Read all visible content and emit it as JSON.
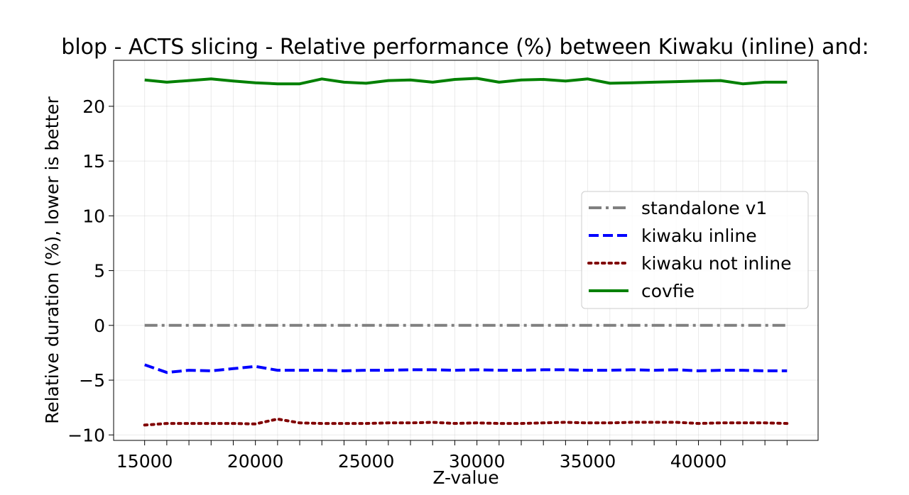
{
  "chart_data": {
    "type": "line",
    "title": "blop - ACTS slicing - Relative performance (%) between Kiwaku (inline) and:",
    "xlabel": "Z-value",
    "ylabel": "Relative duration (%), lower is better",
    "xlim": [
      13600,
      45400
    ],
    "ylim": [
      -10.5,
      24.2
    ],
    "xticks": [
      15000,
      20000,
      25000,
      30000,
      35000,
      40000
    ],
    "yticks": [
      -10,
      -5,
      0,
      5,
      10,
      15,
      20
    ],
    "ytick_labels": [
      "−10",
      "−5",
      "0",
      "5",
      "10",
      "15",
      "20"
    ],
    "grid": true,
    "legend_position": "center-right",
    "x": [
      15000,
      16000,
      17000,
      18000,
      19000,
      20000,
      21000,
      22000,
      23000,
      24000,
      25000,
      26000,
      27000,
      28000,
      29000,
      30000,
      31000,
      32000,
      33000,
      34000,
      35000,
      36000,
      37000,
      38000,
      39000,
      40000,
      41000,
      42000,
      43000,
      44000
    ],
    "series": [
      {
        "name": "standalone v1",
        "color": "#808080",
        "dash": "dashdot",
        "values": [
          0,
          0,
          0,
          0,
          0,
          0,
          0,
          0,
          0,
          0,
          0,
          0,
          0,
          0,
          0,
          0,
          0,
          0,
          0,
          0,
          0,
          0,
          0,
          0,
          0,
          0,
          0,
          0,
          0,
          0
        ]
      },
      {
        "name": "kiwaku inline",
        "color": "#0000ff",
        "dash": "dashed",
        "values": [
          -3.6,
          -4.3,
          -4.1,
          -4.15,
          -3.95,
          -3.75,
          -4.1,
          -4.1,
          -4.1,
          -4.15,
          -4.1,
          -4.1,
          -4.05,
          -4.05,
          -4.1,
          -4.05,
          -4.1,
          -4.1,
          -4.05,
          -4.05,
          -4.1,
          -4.1,
          -4.05,
          -4.1,
          -4.05,
          -4.15,
          -4.1,
          -4.1,
          -4.15,
          -4.15
        ]
      },
      {
        "name": "kiwaku not inline",
        "color": "#800000",
        "dash": "dotted",
        "values": [
          -9.1,
          -8.95,
          -8.95,
          -8.95,
          -8.95,
          -9.0,
          -8.55,
          -8.9,
          -8.95,
          -8.95,
          -8.95,
          -8.9,
          -8.9,
          -8.85,
          -8.95,
          -8.9,
          -8.95,
          -8.95,
          -8.9,
          -8.85,
          -8.9,
          -8.9,
          -8.85,
          -8.85,
          -8.85,
          -8.95,
          -8.9,
          -8.9,
          -8.9,
          -8.95
        ]
      },
      {
        "name": "covfie",
        "color": "#008000",
        "dash": "solid",
        "values": [
          22.4,
          22.2,
          22.35,
          22.5,
          22.3,
          22.15,
          22.05,
          22.05,
          22.5,
          22.2,
          22.1,
          22.35,
          22.4,
          22.2,
          22.45,
          22.55,
          22.2,
          22.4,
          22.45,
          22.3,
          22.5,
          22.1,
          22.15,
          22.2,
          22.25,
          22.3,
          22.35,
          22.05,
          22.2,
          22.2
        ]
      }
    ]
  }
}
